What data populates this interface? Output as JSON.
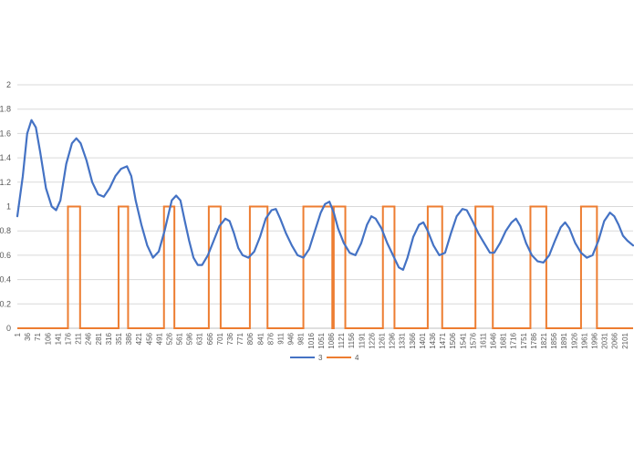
{
  "chart_data": {
    "type": "line",
    "title": "",
    "xlabel": "",
    "ylabel": "",
    "ylim": [
      0,
      2
    ],
    "xlim": [
      1,
      2130
    ],
    "y_ticks": [
      "0",
      "0.2",
      "0.4",
      "0.6",
      "0.8",
      "1",
      "1.2",
      "1.4",
      "1.6",
      "1.8",
      "2"
    ],
    "x_tick_labels": [
      "1",
      "36",
      "71",
      "106",
      "141",
      "176",
      "211",
      "246",
      "281",
      "316",
      "351",
      "386",
      "421",
      "456",
      "491",
      "526",
      "561",
      "596",
      "631",
      "666",
      "701",
      "736",
      "771",
      "806",
      "841",
      "876",
      "911",
      "946",
      "981",
      "1016",
      "1051",
      "1086",
      "1121",
      "1156",
      "1191",
      "1226",
      "1261",
      "1296",
      "1331",
      "1366",
      "1401",
      "1436",
      "1471",
      "1506",
      "1541",
      "1576",
      "1611",
      "1646",
      "1681",
      "1716",
      "1751",
      "1786",
      "1821",
      "1856",
      "1891",
      "1926",
      "1961",
      "1996",
      "2031",
      "2066",
      "2101"
    ],
    "grid": "horizontal",
    "legend_position": "bottom",
    "series": [
      {
        "name": "3",
        "color": "#4472C4",
        "points": [
          [
            1,
            0.92
          ],
          [
            20,
            1.25
          ],
          [
            35,
            1.6
          ],
          [
            50,
            1.71
          ],
          [
            65,
            1.65
          ],
          [
            80,
            1.45
          ],
          [
            100,
            1.15
          ],
          [
            120,
            1.0
          ],
          [
            135,
            0.97
          ],
          [
            150,
            1.05
          ],
          [
            170,
            1.35
          ],
          [
            190,
            1.52
          ],
          [
            205,
            1.56
          ],
          [
            220,
            1.52
          ],
          [
            240,
            1.38
          ],
          [
            260,
            1.2
          ],
          [
            280,
            1.1
          ],
          [
            300,
            1.08
          ],
          [
            320,
            1.15
          ],
          [
            340,
            1.25
          ],
          [
            360,
            1.31
          ],
          [
            380,
            1.33
          ],
          [
            395,
            1.25
          ],
          [
            410,
            1.05
          ],
          [
            430,
            0.85
          ],
          [
            450,
            0.68
          ],
          [
            470,
            0.58
          ],
          [
            490,
            0.63
          ],
          [
            510,
            0.8
          ],
          [
            525,
            0.95
          ],
          [
            535,
            1.05
          ],
          [
            550,
            1.09
          ],
          [
            565,
            1.05
          ],
          [
            580,
            0.88
          ],
          [
            595,
            0.72
          ],
          [
            610,
            0.58
          ],
          [
            625,
            0.52
          ],
          [
            640,
            0.52
          ],
          [
            660,
            0.6
          ],
          [
            680,
            0.72
          ],
          [
            700,
            0.84
          ],
          [
            720,
            0.9
          ],
          [
            735,
            0.88
          ],
          [
            750,
            0.78
          ],
          [
            765,
            0.66
          ],
          [
            780,
            0.6
          ],
          [
            800,
            0.58
          ],
          [
            820,
            0.63
          ],
          [
            840,
            0.75
          ],
          [
            860,
            0.9
          ],
          [
            880,
            0.97
          ],
          [
            895,
            0.98
          ],
          [
            910,
            0.9
          ],
          [
            930,
            0.78
          ],
          [
            950,
            0.68
          ],
          [
            970,
            0.6
          ],
          [
            990,
            0.58
          ],
          [
            1010,
            0.65
          ],
          [
            1030,
            0.8
          ],
          [
            1050,
            0.95
          ],
          [
            1065,
            1.02
          ],
          [
            1080,
            1.04
          ],
          [
            1095,
            0.95
          ],
          [
            1110,
            0.82
          ],
          [
            1130,
            0.7
          ],
          [
            1150,
            0.62
          ],
          [
            1170,
            0.6
          ],
          [
            1190,
            0.7
          ],
          [
            1210,
            0.85
          ],
          [
            1225,
            0.92
          ],
          [
            1240,
            0.9
          ],
          [
            1260,
            0.82
          ],
          [
            1280,
            0.7
          ],
          [
            1300,
            0.6
          ],
          [
            1320,
            0.5
          ],
          [
            1335,
            0.48
          ],
          [
            1350,
            0.58
          ],
          [
            1370,
            0.75
          ],
          [
            1390,
            0.85
          ],
          [
            1405,
            0.87
          ],
          [
            1420,
            0.8
          ],
          [
            1440,
            0.68
          ],
          [
            1460,
            0.6
          ],
          [
            1480,
            0.62
          ],
          [
            1500,
            0.78
          ],
          [
            1520,
            0.92
          ],
          [
            1540,
            0.98
          ],
          [
            1555,
            0.97
          ],
          [
            1575,
            0.88
          ],
          [
            1595,
            0.78
          ],
          [
            1615,
            0.7
          ],
          [
            1635,
            0.62
          ],
          [
            1650,
            0.62
          ],
          [
            1670,
            0.7
          ],
          [
            1690,
            0.8
          ],
          [
            1710,
            0.87
          ],
          [
            1725,
            0.9
          ],
          [
            1740,
            0.84
          ],
          [
            1760,
            0.7
          ],
          [
            1780,
            0.6
          ],
          [
            1800,
            0.55
          ],
          [
            1820,
            0.54
          ],
          [
            1840,
            0.6
          ],
          [
            1860,
            0.72
          ],
          [
            1880,
            0.83
          ],
          [
            1895,
            0.87
          ],
          [
            1910,
            0.82
          ],
          [
            1930,
            0.7
          ],
          [
            1950,
            0.62
          ],
          [
            1970,
            0.58
          ],
          [
            1990,
            0.6
          ],
          [
            2010,
            0.72
          ],
          [
            2030,
            0.88
          ],
          [
            2050,
            0.95
          ],
          [
            2065,
            0.92
          ],
          [
            2080,
            0.85
          ],
          [
            2095,
            0.76
          ],
          [
            2110,
            0.72
          ],
          [
            2130,
            0.68
          ]
        ]
      },
      {
        "name": "4",
        "color": "#ED7D31",
        "points": [
          [
            1,
            0
          ],
          [
            176,
            0
          ],
          [
            176,
            1
          ],
          [
            218,
            0
          ],
          [
            218,
            1
          ]
        ]
      }
    ]
  }
}
